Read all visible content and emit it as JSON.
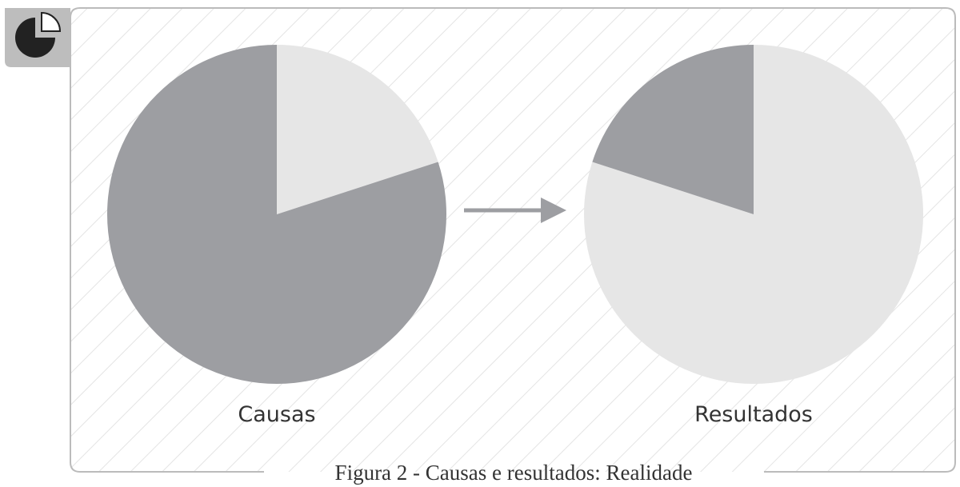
{
  "caption": "Figura 2 - Causas e resultados: Realidade",
  "chart_data": [
    {
      "type": "pie",
      "label": "Causas",
      "values": [
        20,
        80
      ],
      "colors": [
        "#e6e6e6",
        "#9d9ea2"
      ]
    },
    {
      "type": "pie",
      "label": "Resultados",
      "values": [
        80,
        20
      ],
      "colors": [
        "#e6e6e6",
        "#9d9ea2"
      ]
    }
  ]
}
